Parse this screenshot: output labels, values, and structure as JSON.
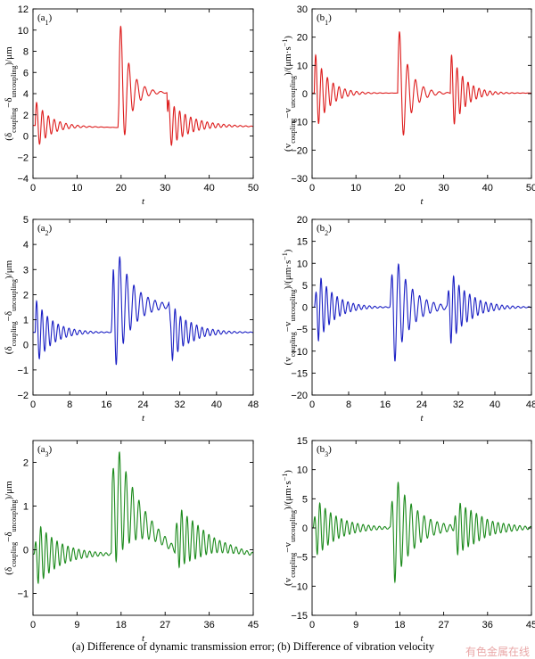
{
  "chart_data": [
    {
      "panel": "(a1)",
      "type": "line",
      "color": "#dd1c1c",
      "xlabel": "t",
      "ylabel": "(δcoupling−δuncoupling)/μm",
      "xlim": [
        0,
        50
      ],
      "ylim": [
        -4,
        12
      ],
      "xticks": [
        0,
        10,
        20,
        30,
        40,
        50
      ],
      "yticks": [
        -4,
        -2,
        0,
        2,
        4,
        6,
        8,
        10,
        12
      ],
      "events": [
        {
          "t0": 0.5,
          "amp": 2.4,
          "tau": 3.2,
          "freq": 0.75,
          "env": "decay"
        },
        {
          "t0": 19.5,
          "amp": 7.5,
          "tau": 2.2,
          "freq": 0.55,
          "env": "decay"
        },
        {
          "t0": 30.5,
          "amp": 2.4,
          "tau": 4.5,
          "freq": 0.8,
          "env": "decay"
        }
      ],
      "baseline": [
        [
          0,
          1.0
        ],
        [
          19.3,
          0.8
        ],
        [
          19.6,
          4.2
        ],
        [
          30.4,
          4.1
        ],
        [
          30.6,
          1.1
        ],
        [
          50,
          0.9
        ]
      ]
    },
    {
      "panel": "(b1)",
      "type": "line",
      "color": "#dd1c1c",
      "xlabel": "t",
      "ylabel": "(vcoupling−vuncoupling)/(μm·s−1)",
      "xlim": [
        0,
        50
      ],
      "ylim": [
        -30,
        30
      ],
      "xticks": [
        0,
        10,
        20,
        30,
        40,
        50
      ],
      "yticks": [
        -30,
        -20,
        -10,
        0,
        10,
        20,
        30
      ],
      "events": [
        {
          "t0": 0.5,
          "amp": 15,
          "tau": 3.0,
          "freq": 0.75,
          "env": "decay"
        },
        {
          "t0": 19.5,
          "amp": 26,
          "tau": 2.4,
          "freq": 0.55,
          "env": "decay"
        },
        {
          "t0": 31.5,
          "amp": 15,
          "tau": 3.0,
          "freq": 0.8,
          "env": "decay"
        }
      ],
      "baseline": [
        [
          0,
          0.2
        ],
        [
          50,
          0.2
        ]
      ]
    },
    {
      "panel": "(a2)",
      "type": "line",
      "color": "#1a1fc4",
      "xlabel": "t",
      "ylabel": "(δcoupling−δuncoupling)/μm",
      "xlim": [
        0,
        48
      ],
      "ylim": [
        -2,
        5
      ],
      "xticks": [
        0,
        8,
        16,
        24,
        32,
        40,
        48
      ],
      "yticks": [
        -2,
        -1,
        0,
        1,
        2,
        3,
        4,
        5
      ],
      "events": [
        {
          "t0": 0.5,
          "amp": 1.35,
          "tau": 3.5,
          "freq": 0.85,
          "env": "decay"
        },
        {
          "t0": 17.0,
          "amp": 3.3,
          "tau": 3.5,
          "freq": 0.65,
          "env": "rise"
        },
        {
          "t0": 29.5,
          "amp": 1.3,
          "tau": 4.0,
          "freq": 0.85,
          "env": "rise"
        }
      ],
      "baseline": [
        [
          0,
          0.5
        ],
        [
          17.2,
          0.5
        ],
        [
          17.5,
          1.6
        ],
        [
          29.6,
          1.55
        ],
        [
          29.9,
          0.5
        ],
        [
          48,
          0.5
        ]
      ]
    },
    {
      "panel": "(b2)",
      "type": "line",
      "color": "#1a1fc4",
      "xlabel": "t",
      "ylabel": "(vcoupling−vuncoupling)/(μm·s−1)",
      "xlim": [
        0,
        48
      ],
      "ylim": [
        -20,
        20
      ],
      "xticks": [
        0,
        8,
        16,
        24,
        32,
        40,
        48
      ],
      "yticks": [
        -20,
        -15,
        -10,
        -5,
        0,
        5,
        10,
        15,
        20
      ],
      "events": [
        {
          "t0": 0.5,
          "amp": 10,
          "tau": 3.5,
          "freq": 0.85,
          "env": "rise"
        },
        {
          "t0": 17.0,
          "amp": 17,
          "tau": 3.5,
          "freq": 0.65,
          "env": "rise"
        },
        {
          "t0": 29.5,
          "amp": 10,
          "tau": 4.0,
          "freq": 0.85,
          "env": "rise"
        }
      ],
      "baseline": [
        [
          0,
          0
        ],
        [
          48,
          0
        ]
      ]
    },
    {
      "panel": "(a3)",
      "type": "line",
      "color": "#1b8a1b",
      "xlabel": "t",
      "ylabel": "(δcoupling−δuncoupling)/μm",
      "xlim": [
        0,
        45
      ],
      "ylim": [
        -1.5,
        2.5
      ],
      "xticks": [
        0,
        9,
        18,
        27,
        36,
        45
      ],
      "yticks": [
        -1,
        0,
        1,
        2
      ],
      "events": [
        {
          "t0": 0.2,
          "amp": 0.85,
          "tau": 4.5,
          "freq": 0.9,
          "env": "rise"
        },
        {
          "t0": 16.0,
          "amp": 1.8,
          "tau": 4.0,
          "freq": 0.75,
          "env": "rise"
        },
        {
          "t0": 29.0,
          "amp": 0.9,
          "tau": 5.0,
          "freq": 0.9,
          "env": "rise"
        }
      ],
      "baseline": [
        [
          0,
          -0.1
        ],
        [
          16,
          -0.1
        ],
        [
          16.2,
          1.2
        ],
        [
          29,
          0.0
        ],
        [
          29.2,
          0.3
        ],
        [
          45,
          -0.1
        ]
      ]
    },
    {
      "panel": "(b3)",
      "type": "line",
      "color": "#1b8a1b",
      "xlabel": "t",
      "ylabel": "(vcoupling−vuncoupling)/(μm·s−1)",
      "xlim": [
        0,
        45
      ],
      "ylim": [
        -15,
        15
      ],
      "xticks": [
        0,
        9,
        18,
        27,
        36,
        45
      ],
      "yticks": [
        -15,
        -10,
        -5,
        0,
        5,
        10,
        15
      ],
      "events": [
        {
          "t0": 0.2,
          "amp": 5.8,
          "tau": 4.5,
          "freq": 0.9,
          "env": "rise"
        },
        {
          "t0": 16.0,
          "amp": 12,
          "tau": 4.0,
          "freq": 0.75,
          "env": "rise"
        },
        {
          "t0": 29.0,
          "amp": 6,
          "tau": 5.0,
          "freq": 0.9,
          "env": "rise"
        }
      ],
      "baseline": [
        [
          0,
          0
        ],
        [
          45,
          0
        ]
      ]
    }
  ],
  "caption": "(a) Difference of dynamic transmission error; (b) Difference of  vibration velocity",
  "watermark": "有色金属在线"
}
